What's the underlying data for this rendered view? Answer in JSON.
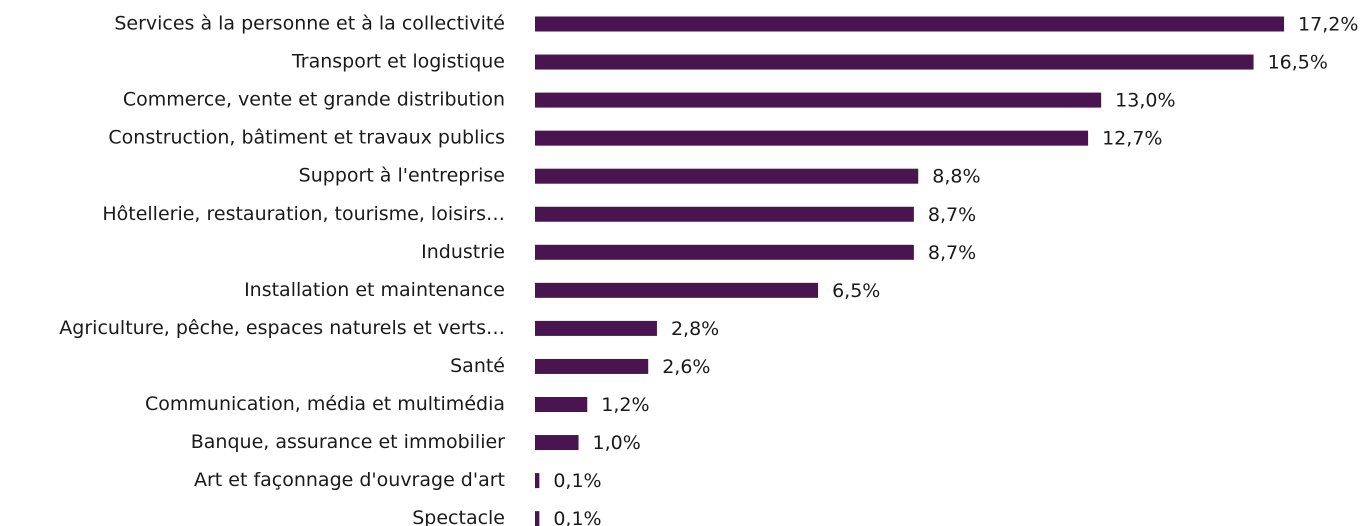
{
  "chart_data": {
    "type": "bar",
    "orientation": "horizontal",
    "color": "#4a1450",
    "categories": [
      "Services à la personne et à la collectivité",
      "Transport et logistique",
      "Commerce, vente et grande distribution",
      "Construction, bâtiment et travaux publics",
      "Support à l'entreprise",
      "Hôtellerie, restauration, tourisme, loisirs…",
      "Industrie",
      "Installation et maintenance",
      "Agriculture, pêche, espaces naturels et verts…",
      "Santé",
      "Communication, média et multimédia",
      "Banque, assurance et immobilier",
      "Art et façonnage d'ouvrage d'art",
      "Spectacle"
    ],
    "values": [
      17.2,
      16.5,
      13.0,
      12.7,
      8.8,
      8.7,
      8.7,
      6.5,
      2.8,
      2.6,
      1.2,
      1.0,
      0.1,
      0.1
    ],
    "value_labels": [
      "17,2%",
      "16,5%",
      "13,0%",
      "12,7%",
      "8,8%",
      "8,7%",
      "8,7%",
      "6,5%",
      "2,8%",
      "2,6%",
      "1,2%",
      "1,0%",
      "0,1%",
      "0,1%"
    ]
  }
}
